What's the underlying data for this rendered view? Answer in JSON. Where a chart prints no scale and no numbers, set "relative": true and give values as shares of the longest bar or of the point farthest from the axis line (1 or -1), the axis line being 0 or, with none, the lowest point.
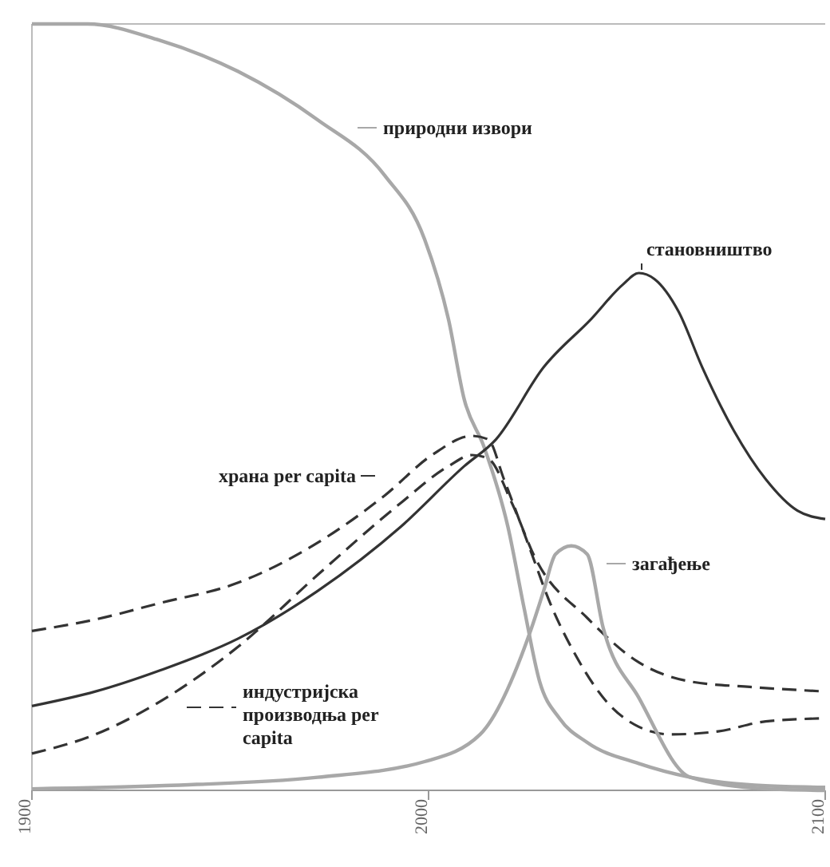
{
  "chart_data": {
    "type": "line",
    "relative": true,
    "xlim": [
      1900,
      2100
    ],
    "xticks": [
      1900,
      2000,
      2100
    ],
    "tick_labels": "x",
    "legend": "center",
    "series": [
      {
        "name": "природни извори",
        "color": "#a8a8a8",
        "line_style": "solid",
        "x": [
          1900,
          1914,
          1932,
          1952,
          1972,
          1989,
          1999,
          2005,
          2009,
          2014,
          2020,
          2024,
          2028,
          2033,
          2040,
          2053,
          2066,
          2085,
          2100
        ],
        "values": [
          1,
          1,
          0.979,
          0.938,
          0.875,
          0.802,
          0.719,
          0.615,
          0.51,
          0.448,
          0.344,
          0.24,
          0.142,
          0.094,
          0.0625,
          0.035,
          0.017,
          0.006,
          0.004
        ]
      },
      {
        "name": "становништво",
        "color": "#333333",
        "line_style": "solid",
        "x": [
          1900,
          1916,
          1932,
          1952,
          1972,
          1993,
          2009,
          2017,
          2029,
          2041,
          2049,
          2053,
          2057,
          2063,
          2069,
          2077,
          2085,
          2093,
          2100
        ],
        "values": [
          0.11,
          0.129,
          0.156,
          0.198,
          0.26,
          0.344,
          0.423,
          0.458,
          0.552,
          0.615,
          0.66,
          0.675,
          0.667,
          0.625,
          0.552,
          0.469,
          0.406,
          0.365,
          0.354
        ]
      },
      {
        "name": "храна per capita",
        "color": "#333333",
        "line_style": "dashed",
        "x": [
          1900,
          1916,
          1932,
          1952,
          1972,
          1989,
          2001,
          2011,
          2015,
          2019,
          2025,
          2031,
          2037,
          2045,
          2053,
          2061,
          2073,
          2085,
          2100
        ],
        "values": [
          0.208,
          0.223,
          0.244,
          0.271,
          0.323,
          0.385,
          0.438,
          0.4625,
          0.458,
          0.406,
          0.323,
          0.24,
          0.177,
          0.115,
          0.083,
          0.073,
          0.077,
          0.09,
          0.094
        ]
      },
      {
        "name": "индустријска производња per capita",
        "color": "#333333",
        "line_style": "dashed",
        "x": [
          1900,
          1916,
          1932,
          1952,
          1972,
          1993,
          2005,
          2011,
          2015,
          2021,
          2027,
          2040,
          2053,
          2066,
          2081,
          2100
        ],
        "values": [
          0.048,
          0.073,
          0.115,
          0.1875,
          0.281,
          0.375,
          0.423,
          0.4375,
          0.433,
          0.375,
          0.302,
          0.225,
          0.167,
          0.142,
          0.135,
          0.129
        ]
      },
      {
        "name": "загађење",
        "color": "#a8a8a8",
        "line_style": "solid",
        "x": [
          1900,
          1932,
          1972,
          1999,
          2013,
          2026,
          2029,
          2032,
          2036,
          2040,
          2044,
          2053,
          2066,
          2085,
          2100
        ],
        "values": [
          0.002,
          0.006,
          0.017,
          0.0375,
          0.073,
          0.2125,
          0.26,
          0.308,
          0.319,
          0.308,
          0.2125,
          0.121,
          0.017,
          0.002,
          0
        ]
      }
    ]
  }
}
